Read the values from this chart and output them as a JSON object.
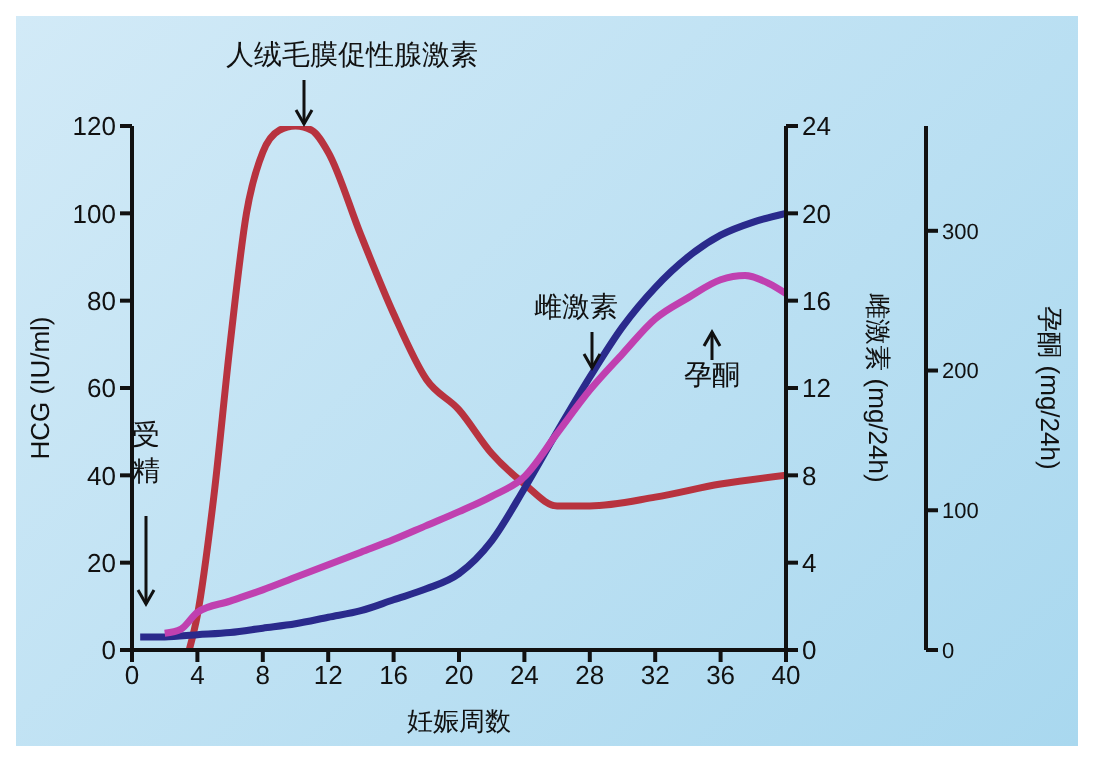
{
  "chart_data": {
    "type": "line",
    "xlabel": "妊娠周数",
    "ylabel": "HCG (IU/ml)",
    "y2label": "雌激素 (mg/24h)",
    "y3label": "孕酮 (mg/24h)",
    "xlim": [
      0,
      40
    ],
    "xticks": [
      0,
      4,
      8,
      12,
      16,
      20,
      24,
      28,
      32,
      36,
      40
    ],
    "ylim": [
      0,
      120
    ],
    "yticks": [
      0,
      20,
      40,
      60,
      80,
      100,
      120
    ],
    "y2lim": [
      0,
      24
    ],
    "y2ticks": [
      0,
      4,
      8,
      12,
      16,
      20,
      24
    ],
    "y3lim": [
      0,
      375
    ],
    "y3ticks": [
      0,
      100,
      200,
      300
    ],
    "series": [
      {
        "color": "#b8333f",
        "x": [
          3.5,
          4,
          5,
          6,
          7,
          8,
          9,
          10,
          11,
          12,
          14,
          16,
          18,
          20,
          22,
          24,
          26,
          28,
          32,
          36,
          40
        ],
        "values": [
          0,
          8,
          35,
          70,
          100,
          114,
          119,
          120,
          119,
          114,
          95,
          77,
          62,
          55,
          45,
          38,
          33,
          33,
          35,
          38,
          40
        ]
      },
      {
        "color": "#2a2a8c",
        "axis": "y2",
        "x": [
          0.5,
          2,
          4,
          6,
          8,
          10,
          12,
          14,
          16,
          18,
          20,
          22,
          24,
          26,
          28,
          30,
          32,
          34,
          36,
          38,
          40
        ],
        "values": [
          0.6,
          0.6,
          0.7,
          0.8,
          1,
          1.2,
          1.5,
          1.8,
          2.3,
          2.8,
          3.5,
          5,
          7.4,
          10,
          12.5,
          14.8,
          16.6,
          18,
          19,
          19.6,
          20
        ]
      },
      {
        "color": "#c040b0",
        "axis": "y3",
        "x": [
          2,
          3,
          4,
          6,
          8,
          10,
          12,
          14,
          16,
          18,
          20,
          22,
          24,
          26,
          28,
          30,
          32,
          34,
          36,
          37.5,
          39,
          40
        ],
        "values": [
          12,
          15,
          27,
          35,
          43,
          52,
          61,
          70,
          79,
          89,
          99,
          110,
          124,
          155,
          186,
          212,
          237,
          252,
          265,
          268,
          262,
          255
        ]
      }
    ],
    "annotations": [
      "人绒毛膜促性腺激素",
      "受精",
      "雌激素",
      "孕酮"
    ],
    "grid": false,
    "marker": "none",
    "line_style": "solid"
  }
}
